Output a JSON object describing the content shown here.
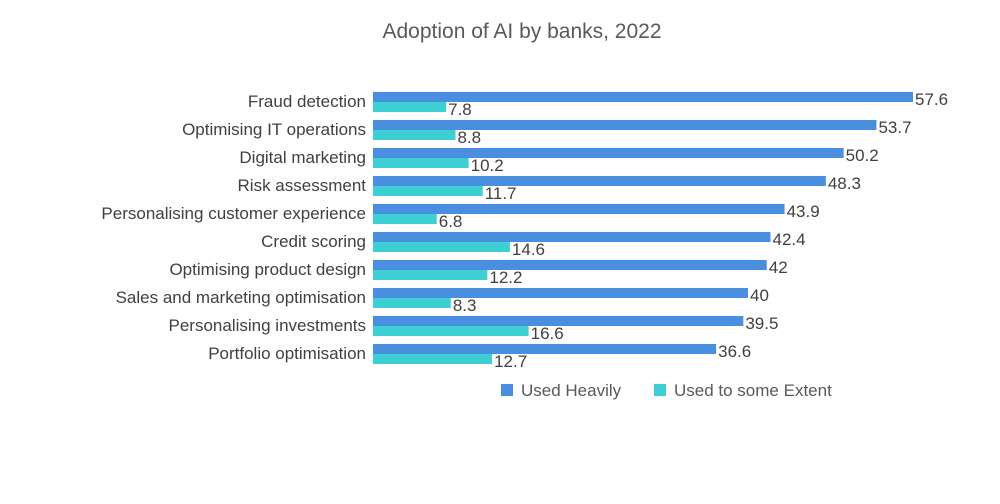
{
  "chart_data": {
    "type": "bar",
    "orientation": "horizontal",
    "title": "Adoption of AI by banks, 2022",
    "xlabel": "",
    "ylabel": "",
    "xlim": [
      0,
      57.6
    ],
    "grid": false,
    "legend_position": "bottom",
    "categories": [
      "Fraud detection",
      "Optimising IT operations",
      "Digital marketing",
      "Risk assessment",
      "Personalising customer experience",
      "Credit scoring",
      "Optimising product design",
      "Sales and marketing optimisation",
      "Personalising investments",
      "Portfolio optimisation"
    ],
    "series": [
      {
        "name": "Used Heavily",
        "color": "#4a8ee0",
        "values": [
          57.6,
          53.7,
          50.2,
          48.3,
          43.9,
          42.4,
          42,
          40,
          39.5,
          36.6
        ],
        "labels": [
          "57.6",
          "53.7",
          "50.2",
          "48.3",
          "43.9",
          "42.4",
          "42",
          "40",
          "39.5",
          "36.6"
        ]
      },
      {
        "name": "Used to some Extent",
        "color": "#3ecfd3",
        "values": [
          7.8,
          8.8,
          10.2,
          11.7,
          6.8,
          14.6,
          12.2,
          8.3,
          16.6,
          12.7
        ],
        "labels": [
          "7.8",
          "8.8",
          "10.2",
          "11.7",
          "6.8",
          "14.6",
          "12.2",
          "8.3",
          "16.6",
          "12.7"
        ]
      }
    ]
  }
}
